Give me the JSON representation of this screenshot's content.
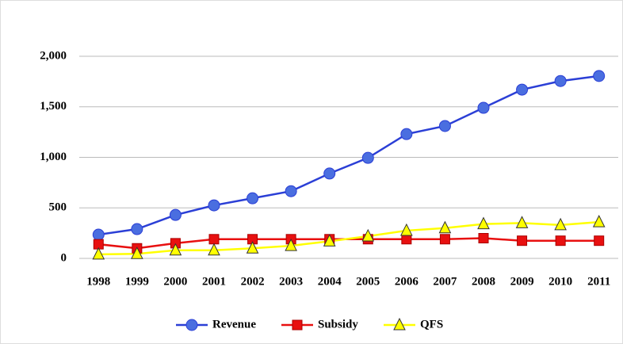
{
  "chart_data": {
    "type": "line",
    "categories": [
      "1998",
      "1999",
      "2000",
      "2001",
      "2002",
      "2003",
      "2004",
      "2005",
      "2006",
      "2007",
      "2008",
      "2009",
      "2010",
      "2011"
    ],
    "series": [
      {
        "name": "Revenue",
        "color": "#2b3fd6",
        "marker": "circle",
        "marker_color": "#4a6ee0",
        "values": [
          235,
          290,
          430,
          525,
          595,
          665,
          840,
          995,
          1230,
          1310,
          1490,
          1670,
          1755,
          1805
        ]
      },
      {
        "name": "Subsidy",
        "color": "#e81010",
        "marker": "square",
        "marker_color": "#e81010",
        "values": [
          140,
          100,
          150,
          190,
          190,
          190,
          190,
          190,
          190,
          190,
          200,
          175,
          175,
          175
        ]
      },
      {
        "name": "QFS",
        "color": "#ffff00",
        "marker": "triangle",
        "marker_color": "#ffff00",
        "values": [
          40,
          45,
          80,
          80,
          100,
          125,
          170,
          220,
          275,
          300,
          340,
          350,
          330,
          360
        ]
      }
    ],
    "ylim": [
      0,
      2000
    ],
    "yticks": [
      0,
      500,
      {
        "value": 1000,
        "label": "1,000"
      },
      {
        "value": 1500,
        "label": "1,500"
      },
      {
        "value": 2000,
        "label": "2,000"
      }
    ],
    "grid": true,
    "legend": "bottom"
  }
}
